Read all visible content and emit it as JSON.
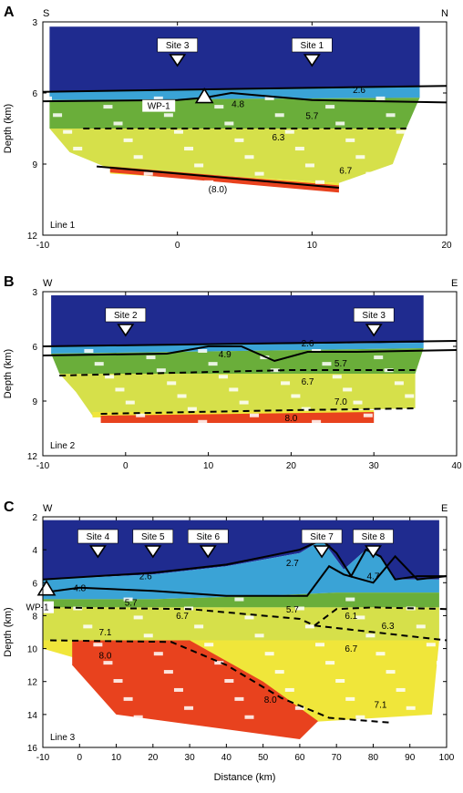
{
  "panels": [
    {
      "letter": "A",
      "left_dir": "S",
      "right_dir": "N",
      "line_label": "Line 1",
      "ylabel": "Depth (km)",
      "xlim": [
        -10,
        20
      ],
      "ylim": [
        3,
        12
      ],
      "xticks": [
        "-10",
        "0",
        "10",
        "20"
      ],
      "yticks": [
        "3",
        "6",
        "9",
        "12"
      ],
      "sites": [
        {
          "label": "Site 3",
          "x": 0
        },
        {
          "label": "Site 1",
          "x": 10
        }
      ],
      "wp": {
        "label": "WP-1",
        "x": 2
      },
      "velocities": [
        {
          "text": "2.6",
          "x": 13.5,
          "y": 6.0
        },
        {
          "text": "4.8",
          "x": 4.5,
          "y": 6.6
        },
        {
          "text": "5.7",
          "x": 10,
          "y": 7.1
        },
        {
          "text": "6.3",
          "x": 7.5,
          "y": 8.0
        },
        {
          "text": "6.7",
          "x": 12.5,
          "y": 9.4
        },
        {
          "text": "(8.0)",
          "x": 3,
          "y": 10.2
        }
      ]
    },
    {
      "letter": "B",
      "left_dir": "W",
      "right_dir": "E",
      "line_label": "Line 2",
      "ylabel": "Depth (km)",
      "xlim": [
        -10,
        40
      ],
      "ylim": [
        3,
        12
      ],
      "xticks": [
        "-10",
        "0",
        "10",
        "20",
        "30",
        "40"
      ],
      "yticks": [
        "3",
        "6",
        "9",
        "12"
      ],
      "sites": [
        {
          "label": "Site 2",
          "x": 0
        },
        {
          "label": "Site 3",
          "x": 30
        }
      ],
      "wp": null,
      "velocities": [
        {
          "text": "4.9",
          "x": 12,
          "y": 6.6
        },
        {
          "text": "2.6",
          "x": 22,
          "y": 6.0
        },
        {
          "text": "5.7",
          "x": 26,
          "y": 7.1
        },
        {
          "text": "6.7",
          "x": 22,
          "y": 8.1
        },
        {
          "text": "7.0",
          "x": 26,
          "y": 9.2
        },
        {
          "text": "8.0",
          "x": 20,
          "y": 10.1
        }
      ]
    },
    {
      "letter": "C",
      "left_dir": "W",
      "right_dir": "E",
      "line_label": "Line 3",
      "ylabel": "Depth (km)",
      "xlabel": "Distance (km)",
      "xlim": [
        -10,
        100
      ],
      "ylim": [
        2,
        16
      ],
      "xticks": [
        "-10",
        "0",
        "10",
        "20",
        "30",
        "40",
        "50",
        "60",
        "70",
        "80",
        "90",
        "100"
      ],
      "yticks": [
        "2",
        "4",
        "6",
        "8",
        "10",
        "12",
        "14",
        "16"
      ],
      "sites": [
        {
          "label": "Site 4",
          "x": 5
        },
        {
          "label": "Site 5",
          "x": 20
        },
        {
          "label": "Site 6",
          "x": 35
        },
        {
          "label": "Site 7",
          "x": 66
        },
        {
          "label": "Site 8",
          "x": 80
        }
      ],
      "wp": {
        "label": "WP-1",
        "x": -9
      },
      "velocities": [
        {
          "text": "2.6",
          "x": 18,
          "y": 5.8
        },
        {
          "text": "2.7",
          "x": 58,
          "y": 5.0
        },
        {
          "text": "4.7",
          "x": 80,
          "y": 5.8
        },
        {
          "text": "4.8",
          "x": 0,
          "y": 6.5
        },
        {
          "text": "5.7",
          "x": 14,
          "y": 7.4
        },
        {
          "text": "6.7",
          "x": 28,
          "y": 8.2
        },
        {
          "text": "5.7",
          "x": 58,
          "y": 7.8
        },
        {
          "text": "6.1",
          "x": 74,
          "y": 8.2
        },
        {
          "text": "6.3",
          "x": 84,
          "y": 8.8
        },
        {
          "text": "7.1",
          "x": 7,
          "y": 9.2
        },
        {
          "text": "6.7",
          "x": 74,
          "y": 10.2
        },
        {
          "text": "8.0",
          "x": 7,
          "y": 10.6
        },
        {
          "text": "8.0",
          "x": 52,
          "y": 13.3
        },
        {
          "text": "7.1",
          "x": 82,
          "y": 13.6
        }
      ]
    }
  ],
  "colors": {
    "water": "#1f2b8f",
    "sediment": "#3aa3d6",
    "upper": "#6aae3a",
    "middle": "#d6e04a",
    "lower": "#f0e63a",
    "mantle": "#e8421e",
    "white": "#ffffff"
  }
}
